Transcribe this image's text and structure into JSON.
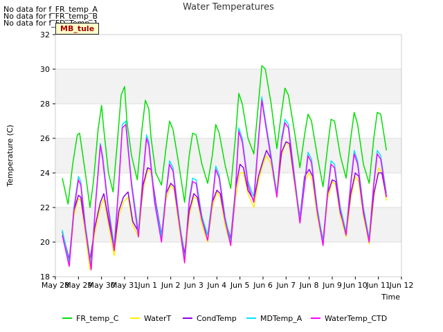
{
  "chart_data": {
    "type": "line",
    "title": "Water Temperatures",
    "xlabel": "Time",
    "ylabel": "Temperature (C)",
    "ylim": [
      18,
      32
    ],
    "yticks": [
      18,
      20,
      22,
      24,
      26,
      28,
      30,
      32
    ],
    "xlim": [
      0,
      15
    ],
    "xticks": [
      {
        "x": 0,
        "label": "May 28"
      },
      {
        "x": 1,
        "label": "May 29"
      },
      {
        "x": 2,
        "label": "May 30"
      },
      {
        "x": 3,
        "label": "May 31"
      },
      {
        "x": 4,
        "label": "Jun 1"
      },
      {
        "x": 5,
        "label": "Jun 2"
      },
      {
        "x": 6,
        "label": "Jun 3"
      },
      {
        "x": 7,
        "label": "Jun 4"
      },
      {
        "x": 8,
        "label": "Jun 5"
      },
      {
        "x": 9,
        "label": "Jun 6"
      },
      {
        "x": 10,
        "label": "Jun 7"
      },
      {
        "x": 11,
        "label": "Jun 8"
      },
      {
        "x": 12,
        "label": "Jun 9"
      },
      {
        "x": 13,
        "label": "Jun 10"
      },
      {
        "x": 14,
        "label": "Jun 11"
      },
      {
        "x": 15,
        "label": "Jun 12"
      }
    ],
    "grid": true,
    "legend_placement": "bottom",
    "no_data_messages": [
      "No data for f_FR_temp_A",
      "No data for f_FR_temp_B",
      "No data for f_FD_Temp_1"
    ],
    "tag_label": "MB_tule",
    "series": [
      {
        "name": "FR_temp_C",
        "color": "#00e000",
        "x": [
          0.3,
          0.55,
          0.75,
          0.95,
          1.05,
          1.3,
          1.5,
          1.65,
          1.85,
          2.0,
          2.1,
          2.3,
          2.5,
          2.7,
          2.85,
          3.0,
          3.1,
          3.3,
          3.55,
          3.75,
          3.9,
          4.05,
          4.15,
          4.35,
          4.6,
          4.8,
          4.95,
          5.1,
          5.35,
          5.6,
          5.8,
          5.95,
          6.1,
          6.35,
          6.6,
          6.8,
          6.95,
          7.1,
          7.35,
          7.6,
          7.8,
          7.95,
          8.1,
          8.35,
          8.6,
          8.8,
          8.95,
          9.1,
          9.35,
          9.6,
          9.8,
          9.95,
          10.1,
          10.35,
          10.6,
          10.8,
          10.95,
          11.1,
          11.35,
          11.6,
          11.8,
          11.95,
          12.1,
          12.35,
          12.6,
          12.8,
          12.95,
          13.1,
          13.35,
          13.6,
          13.8,
          13.95,
          14.1,
          14.35
        ],
        "y": [
          23.7,
          22.2,
          24.5,
          26.2,
          26.3,
          24.0,
          22.0,
          23.5,
          26.5,
          27.9,
          26.5,
          24.0,
          22.9,
          26.0,
          28.5,
          29.0,
          27.0,
          25.0,
          23.6,
          26.5,
          28.2,
          27.7,
          26.0,
          24.0,
          23.3,
          25.5,
          27.0,
          26.5,
          24.5,
          22.3,
          25.0,
          26.3,
          26.2,
          24.5,
          23.4,
          25.0,
          26.8,
          26.3,
          24.5,
          23.1,
          26.0,
          28.6,
          28.0,
          26.0,
          25.1,
          28.0,
          30.2,
          30.0,
          28.0,
          25.4,
          27.5,
          28.9,
          28.5,
          26.5,
          24.3,
          26.2,
          27.4,
          27.0,
          25.0,
          23.2,
          25.5,
          27.1,
          27.0,
          25.0,
          23.7,
          26.0,
          27.5,
          26.8,
          24.5,
          23.4,
          26.0,
          27.5,
          27.4,
          25.3
        ]
      },
      {
        "name": "WaterT",
        "color": "#ffee00",
        "x": [
          0.3,
          0.6,
          0.8,
          1.0,
          1.1,
          1.3,
          1.5,
          1.7,
          1.95,
          2.1,
          2.3,
          2.55,
          2.75,
          2.95,
          3.15,
          3.35,
          3.6,
          3.8,
          4.0,
          4.15,
          4.35,
          4.6,
          4.8,
          5.0,
          5.15,
          5.35,
          5.6,
          5.8,
          6.0,
          6.15,
          6.35,
          6.6,
          6.8,
          7.0,
          7.15,
          7.35,
          7.6,
          7.8,
          8.0,
          8.15,
          8.35,
          8.6,
          8.8,
          9.0,
          9.15,
          9.35,
          9.6,
          9.8,
          10.0,
          10.15,
          10.35,
          10.6,
          10.8,
          11.0,
          11.15,
          11.35,
          11.6,
          11.8,
          12.0,
          12.15,
          12.35,
          12.6,
          12.8,
          13.0,
          13.15,
          13.35,
          13.6,
          13.8,
          14.0,
          14.15,
          14.35
        ],
        "y": [
          20.5,
          18.6,
          21.5,
          22.5,
          22.4,
          20.5,
          18.4,
          20.5,
          22.0,
          22.5,
          21.0,
          19.2,
          21.5,
          22.3,
          22.6,
          21.0,
          20.3,
          23.0,
          24.2,
          24.0,
          22.0,
          20.0,
          22.5,
          23.3,
          23.0,
          21.0,
          18.8,
          21.5,
          22.6,
          22.5,
          21.0,
          20.0,
          22.0,
          22.9,
          22.6,
          21.0,
          19.8,
          22.5,
          24.0,
          24.0,
          22.8,
          22.0,
          23.5,
          24.5,
          25.0,
          24.5,
          22.6,
          25.0,
          25.8,
          25.5,
          23.5,
          21.1,
          23.5,
          24.0,
          23.5,
          21.5,
          19.8,
          22.5,
          23.5,
          23.3,
          21.5,
          20.3,
          22.5,
          23.8,
          23.5,
          21.5,
          19.9,
          22.5,
          24.3,
          24.0,
          22.4
        ]
      },
      {
        "name": "CondTemp",
        "color": "#8a00e6",
        "x": [
          0.3,
          0.6,
          0.8,
          1.0,
          1.1,
          1.3,
          1.5,
          1.7,
          1.95,
          2.1,
          2.3,
          2.55,
          2.75,
          2.95,
          3.15,
          3.35,
          3.6,
          3.8,
          4.0,
          4.15,
          4.35,
          4.6,
          4.8,
          5.0,
          5.15,
          5.35,
          5.6,
          5.8,
          6.0,
          6.15,
          6.35,
          6.6,
          6.8,
          7.0,
          7.15,
          7.35,
          7.6,
          7.8,
          8.0,
          8.15,
          8.35,
          8.6,
          8.8,
          9.0,
          9.15,
          9.35,
          9.6,
          9.8,
          10.0,
          10.15,
          10.35,
          10.6,
          10.8,
          11.0,
          11.15,
          11.35,
          11.6,
          11.8,
          12.0,
          12.15,
          12.35,
          12.6,
          12.8,
          13.0,
          13.15,
          13.35,
          13.6,
          13.8,
          14.0,
          14.15,
          14.35
        ],
        "y": [
          20.6,
          19.0,
          21.8,
          22.7,
          22.6,
          20.8,
          18.9,
          20.8,
          22.3,
          22.8,
          21.3,
          19.6,
          21.8,
          22.6,
          22.9,
          21.2,
          20.6,
          23.3,
          24.3,
          24.2,
          22.3,
          20.4,
          22.8,
          23.4,
          23.2,
          21.3,
          19.3,
          21.8,
          22.8,
          22.6,
          21.3,
          20.4,
          22.3,
          23.0,
          22.8,
          21.3,
          20.2,
          23.0,
          24.5,
          24.3,
          23.0,
          22.4,
          23.8,
          24.7,
          25.3,
          24.8,
          22.8,
          25.2,
          25.8,
          25.7,
          23.7,
          21.4,
          23.8,
          24.2,
          23.8,
          21.8,
          20.1,
          22.8,
          23.6,
          23.5,
          21.7,
          20.6,
          22.8,
          24.0,
          23.8,
          21.7,
          20.1,
          22.8,
          24.0,
          24.0,
          22.6
        ]
      },
      {
        "name": "MDTemp_A",
        "color": "#00e6ff",
        "x": [
          0.3,
          0.6,
          0.8,
          1.0,
          1.1,
          1.3,
          1.55,
          1.75,
          1.95,
          2.05,
          2.3,
          2.55,
          2.75,
          2.9,
          3.05,
          3.3,
          3.6,
          3.8,
          3.95,
          4.05,
          4.3,
          4.6,
          4.8,
          4.95,
          5.1,
          5.35,
          5.6,
          5.8,
          5.95,
          6.1,
          6.35,
          6.6,
          6.8,
          6.95,
          7.1,
          7.35,
          7.6,
          7.8,
          7.95,
          8.1,
          8.35,
          8.6,
          8.8,
          8.95,
          9.05,
          9.35,
          9.6,
          9.8,
          9.95,
          10.1,
          10.35,
          10.6,
          10.8,
          10.95,
          11.1,
          11.35,
          11.6,
          11.8,
          11.95,
          12.1,
          12.35,
          12.6,
          12.8,
          12.95,
          13.1,
          13.35,
          13.6,
          13.8,
          13.95,
          14.1,
          14.35
        ],
        "y": [
          20.7,
          18.8,
          22.0,
          23.8,
          23.5,
          21.0,
          18.6,
          22.5,
          25.7,
          25.0,
          22.0,
          19.8,
          23.5,
          26.8,
          27.0,
          23.5,
          20.6,
          24.0,
          26.2,
          25.8,
          22.5,
          20.3,
          23.0,
          24.7,
          24.3,
          21.5,
          19.0,
          22.5,
          23.7,
          23.6,
          21.5,
          20.4,
          22.5,
          24.4,
          23.9,
          21.5,
          20.0,
          23.0,
          26.6,
          26.0,
          23.5,
          22.6,
          26.0,
          28.4,
          27.5,
          25.0,
          22.8,
          26.0,
          27.1,
          26.8,
          24.0,
          21.3,
          23.5,
          25.2,
          24.8,
          22.0,
          20.0,
          23.0,
          24.7,
          24.5,
          22.0,
          20.6,
          23.5,
          25.3,
          24.7,
          22.0,
          20.2,
          23.5,
          25.3,
          25.0,
          22.8
        ]
      },
      {
        "name": "WaterTemp_CTD",
        "color": "#ff00ff",
        "x": [
          0.3,
          0.6,
          0.8,
          1.0,
          1.1,
          1.3,
          1.55,
          1.75,
          1.95,
          2.05,
          2.3,
          2.55,
          2.75,
          2.9,
          3.05,
          3.3,
          3.6,
          3.8,
          3.95,
          4.05,
          4.3,
          4.6,
          4.8,
          4.95,
          5.1,
          5.35,
          5.6,
          5.8,
          5.95,
          6.1,
          6.35,
          6.6,
          6.8,
          6.95,
          7.1,
          7.35,
          7.6,
          7.8,
          7.95,
          8.1,
          8.35,
          8.6,
          8.8,
          8.95,
          9.05,
          9.35,
          9.6,
          9.8,
          9.95,
          10.1,
          10.35,
          10.6,
          10.8,
          10.95,
          11.1,
          11.35,
          11.6,
          11.8,
          11.95,
          12.1,
          12.35,
          12.6,
          12.8,
          12.95,
          13.1,
          13.35,
          13.6,
          13.8,
          13.95,
          14.1,
          14.35
        ],
        "y": [
          20.4,
          18.6,
          21.8,
          23.6,
          23.3,
          20.8,
          18.4,
          22.3,
          25.6,
          24.8,
          21.8,
          19.5,
          23.3,
          26.6,
          26.8,
          23.3,
          20.3,
          23.8,
          26.0,
          25.6,
          22.3,
          20.0,
          22.8,
          24.5,
          24.1,
          21.3,
          18.8,
          22.3,
          23.5,
          23.4,
          21.3,
          20.1,
          22.3,
          24.2,
          23.7,
          21.3,
          19.8,
          22.8,
          26.4,
          25.8,
          23.3,
          22.3,
          25.8,
          28.2,
          27.3,
          24.8,
          22.6,
          25.8,
          26.9,
          26.6,
          23.8,
          21.1,
          23.3,
          25.0,
          24.6,
          21.8,
          19.8,
          22.8,
          24.5,
          24.3,
          21.8,
          20.4,
          23.3,
          25.1,
          24.5,
          21.8,
          20.0,
          23.3,
          25.1,
          24.8,
          22.6
        ]
      }
    ]
  }
}
